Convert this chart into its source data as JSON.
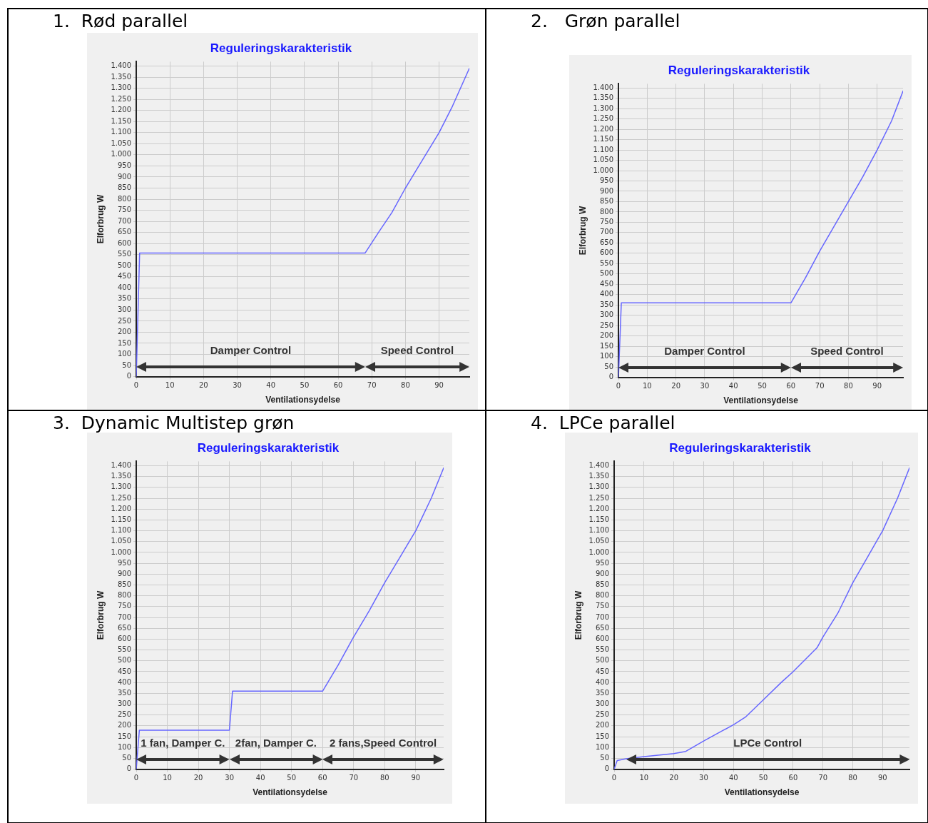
{
  "chart_data": [
    {
      "type": "line",
      "title": "1.  Rød parallel",
      "subtitle": "Reguleringskarakteristik",
      "xlabel": "Ventilationsydelse",
      "ylabel": "Elforbrug W",
      "grid": true,
      "legend": false,
      "marker": "none",
      "line_style": "solid",
      "xlim": [
        0,
        99
      ],
      "xticks": [
        0,
        10,
        20,
        30,
        40,
        50,
        60,
        70,
        80,
        90
      ],
      "ylim": [
        0,
        1420
      ],
      "yticks": [
        0,
        50,
        100,
        150,
        200,
        250,
        300,
        350,
        400,
        450,
        500,
        550,
        600,
        650,
        700,
        750,
        800,
        850,
        900,
        950,
        {
          "value": 1000,
          "label": "1.000"
        },
        {
          "value": 1050,
          "label": "1.050"
        },
        {
          "value": 1100,
          "label": "1.100"
        },
        {
          "value": 1150,
          "label": "1.150"
        },
        {
          "value": 1200,
          "label": "1.200"
        },
        {
          "value": 1250,
          "label": "1.250"
        },
        {
          "value": 1300,
          "label": "1.300"
        },
        {
          "value": 1350,
          "label": "1.350"
        },
        {
          "value": 1400,
          "label": "1.400"
        }
      ],
      "annotations": [
        "Damper Control",
        "Speed Control"
      ],
      "series": [
        {
          "color": "#6666ff",
          "x": [
            0,
            1,
            68,
            72,
            76,
            80,
            84,
            88,
            90,
            94,
            99
          ],
          "values": [
            0,
            557,
            557,
            650,
            740,
            850,
            950,
            1050,
            1100,
            1220,
            1390
          ]
        }
      ]
    },
    {
      "type": "line",
      "title": "2.   Grøn parallel",
      "subtitle": "Reguleringskarakteristik",
      "xlabel": "Ventilationsydelse",
      "ylabel": "Elforbrug W",
      "grid": true,
      "legend": false,
      "marker": "none",
      "line_style": "solid",
      "xlim": [
        0,
        99
      ],
      "xticks": [
        0,
        10,
        20,
        30,
        40,
        50,
        60,
        70,
        80,
        90
      ],
      "ylim": [
        0,
        1420
      ],
      "yticks": [
        0,
        50,
        100,
        150,
        200,
        250,
        300,
        350,
        400,
        450,
        500,
        550,
        600,
        650,
        700,
        750,
        800,
        850,
        900,
        950,
        {
          "value": 1000,
          "label": "1.000"
        },
        {
          "value": 1050,
          "label": "1.050"
        },
        {
          "value": 1100,
          "label": "1.100"
        },
        {
          "value": 1150,
          "label": "1.150"
        },
        {
          "value": 1200,
          "label": "1.200"
        },
        {
          "value": 1250,
          "label": "1.250"
        },
        {
          "value": 1300,
          "label": "1.300"
        },
        {
          "value": 1350,
          "label": "1.350"
        },
        {
          "value": 1400,
          "label": "1.400"
        }
      ],
      "annotations": [
        "Damper Control",
        "Speed Control"
      ],
      "series": [
        {
          "color": "#6666ff",
          "x": [
            0,
            1,
            60,
            65,
            70,
            75,
            80,
            85,
            90,
            95,
            99
          ],
          "values": [
            0,
            360,
            360,
            480,
            610,
            730,
            850,
            970,
            1100,
            1240,
            1385
          ]
        }
      ]
    },
    {
      "type": "line",
      "title": "3.  Dynamic Multistep grøn",
      "subtitle": "Reguleringskarakteristik",
      "xlabel": "Ventilationsydelse",
      "ylabel": "Elforbrug W",
      "grid": true,
      "legend": false,
      "marker": "none",
      "line_style": "solid",
      "xlim": [
        0,
        99
      ],
      "xticks": [
        0,
        10,
        20,
        30,
        40,
        50,
        60,
        70,
        80,
        90
      ],
      "ylim": [
        0,
        1420
      ],
      "yticks": [
        0,
        50,
        100,
        150,
        200,
        250,
        300,
        350,
        400,
        450,
        500,
        550,
        600,
        650,
        700,
        750,
        800,
        850,
        900,
        950,
        {
          "value": 1000,
          "label": "1.000"
        },
        {
          "value": 1050,
          "label": "1.050"
        },
        {
          "value": 1100,
          "label": "1.100"
        },
        {
          "value": 1150,
          "label": "1.150"
        },
        {
          "value": 1200,
          "label": "1.200"
        },
        {
          "value": 1250,
          "label": "1.250"
        },
        {
          "value": 1300,
          "label": "1.300"
        },
        {
          "value": 1350,
          "label": "1.350"
        },
        {
          "value": 1400,
          "label": "1.400"
        }
      ],
      "annotations": [
        "1 fan, Damper C.",
        "2fan, Damper C.",
        "2 fans,Speed Control"
      ],
      "series": [
        {
          "color": "#6666ff",
          "x": [
            0,
            1,
            30,
            31,
            60,
            65,
            70,
            75,
            80,
            85,
            90,
            95,
            99
          ],
          "values": [
            0,
            180,
            180,
            360,
            360,
            480,
            610,
            730,
            860,
            980,
            1100,
            1250,
            1390
          ]
        }
      ]
    },
    {
      "type": "line",
      "title": "4.  LPCe parallel",
      "subtitle": "Reguleringskarakteristik",
      "xlabel": "Ventilationsydelse",
      "ylabel": "Elforbrug W",
      "grid": true,
      "legend": false,
      "marker": "none",
      "line_style": "solid",
      "xlim": [
        0,
        99
      ],
      "xticks": [
        0,
        10,
        20,
        30,
        40,
        50,
        60,
        70,
        80,
        90
      ],
      "ylim": [
        0,
        1420
      ],
      "yticks": [
        0,
        50,
        100,
        150,
        200,
        250,
        300,
        350,
        400,
        450,
        500,
        550,
        600,
        650,
        700,
        750,
        800,
        850,
        900,
        950,
        {
          "value": 1000,
          "label": "1.000"
        },
        {
          "value": 1050,
          "label": "1.050"
        },
        {
          "value": 1100,
          "label": "1.100"
        },
        {
          "value": 1150,
          "label": "1.150"
        },
        {
          "value": 1200,
          "label": "1.200"
        },
        {
          "value": 1250,
          "label": "1.250"
        },
        {
          "value": 1300,
          "label": "1.300"
        },
        {
          "value": 1350,
          "label": "1.350"
        },
        {
          "value": 1400,
          "label": "1.400"
        }
      ],
      "annotations": [
        "LPCe Control"
      ],
      "series": [
        {
          "color": "#6666ff",
          "x": [
            0,
            1,
            4,
            10,
            20,
            24,
            30,
            36,
            40,
            44,
            50,
            56,
            60,
            64,
            68,
            70,
            75,
            80,
            85,
            90,
            95,
            99
          ],
          "values": [
            0,
            40,
            48,
            58,
            72,
            82,
            130,
            175,
            205,
            240,
            320,
            400,
            450,
            505,
            560,
            610,
            720,
            860,
            980,
            1100,
            1250,
            1390
          ]
        }
      ]
    }
  ]
}
